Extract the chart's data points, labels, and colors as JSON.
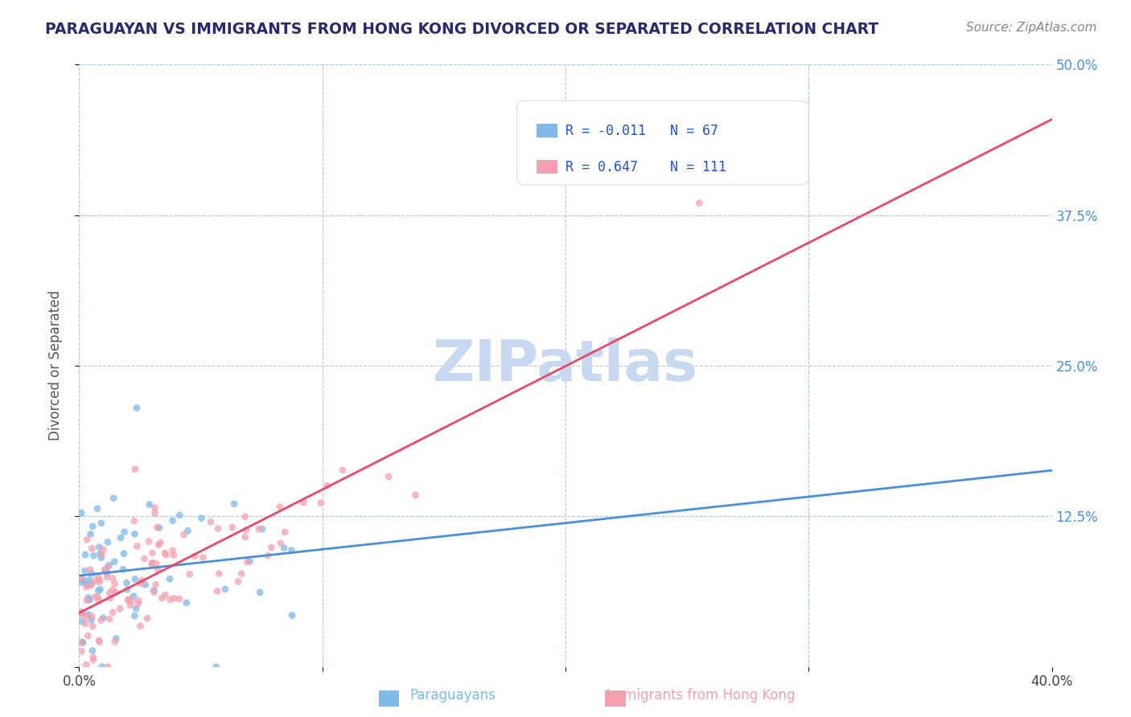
{
  "title": "PARAGUAYAN VS IMMIGRANTS FROM HONG KONG DIVORCED OR SEPARATED CORRELATION CHART",
  "source_text": "Source: ZipAtlas.com",
  "xlabel_paraguayan": "Paraguayans",
  "xlabel_hk": "Immigrants from Hong Kong",
  "ylabel": "Divorced or Separated",
  "xmin": 0.0,
  "xmax": 0.4,
  "ymin": 0.0,
  "ymax": 0.5,
  "yticks": [
    0.0,
    0.125,
    0.25,
    0.375,
    0.5
  ],
  "ytick_labels": [
    "",
    "12.5%",
    "25.0%",
    "37.5%",
    "50.0%"
  ],
  "xticks": [
    0.0,
    0.1,
    0.2,
    0.3,
    0.4
  ],
  "xtick_labels": [
    "0.0%",
    "",
    "",
    "",
    "40.0%"
  ],
  "R_paraguayan": -0.011,
  "N_paraguayan": 67,
  "R_hk": 0.647,
  "N_hk": 111,
  "color_paraguayan": "#7eb9e8",
  "color_hk": "#f4a0b0",
  "line_color_paraguayan": "#4a90d9",
  "line_color_hk": "#e8496a",
  "watermark": "ZIPatlas",
  "watermark_color": "#c8d8f0",
  "background_color": "#ffffff",
  "grid_color": "#b0c8e0",
  "title_color": "#2a2a6a",
  "source_color": "#888888",
  "legend_text_color": "#2255cc",
  "dot_alpha": 0.75,
  "dot_size": 40
}
